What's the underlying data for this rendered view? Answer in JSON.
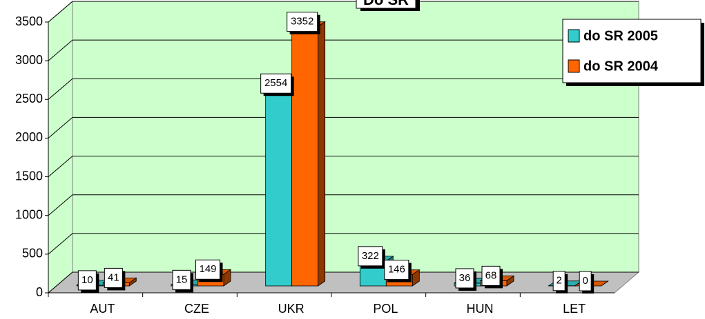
{
  "chart_data": {
    "type": "bar3d",
    "title": "Do SR",
    "categories": [
      "AUT",
      "CZE",
      "UKR",
      "POL",
      "HUN",
      "LET"
    ],
    "series": [
      {
        "name": "do SR 2005",
        "color": "#33cccc",
        "values": [
          10,
          15,
          2554,
          322,
          36,
          2
        ]
      },
      {
        "name": "do SR 2004",
        "color": "#ff6600",
        "values": [
          41,
          149,
          3352,
          146,
          68,
          0
        ]
      }
    ],
    "ylim": [
      0,
      3500
    ],
    "yticks": [
      0,
      500,
      1000,
      1500,
      2000,
      2500,
      3000,
      3500
    ],
    "grid": true,
    "legend": "top-right"
  }
}
